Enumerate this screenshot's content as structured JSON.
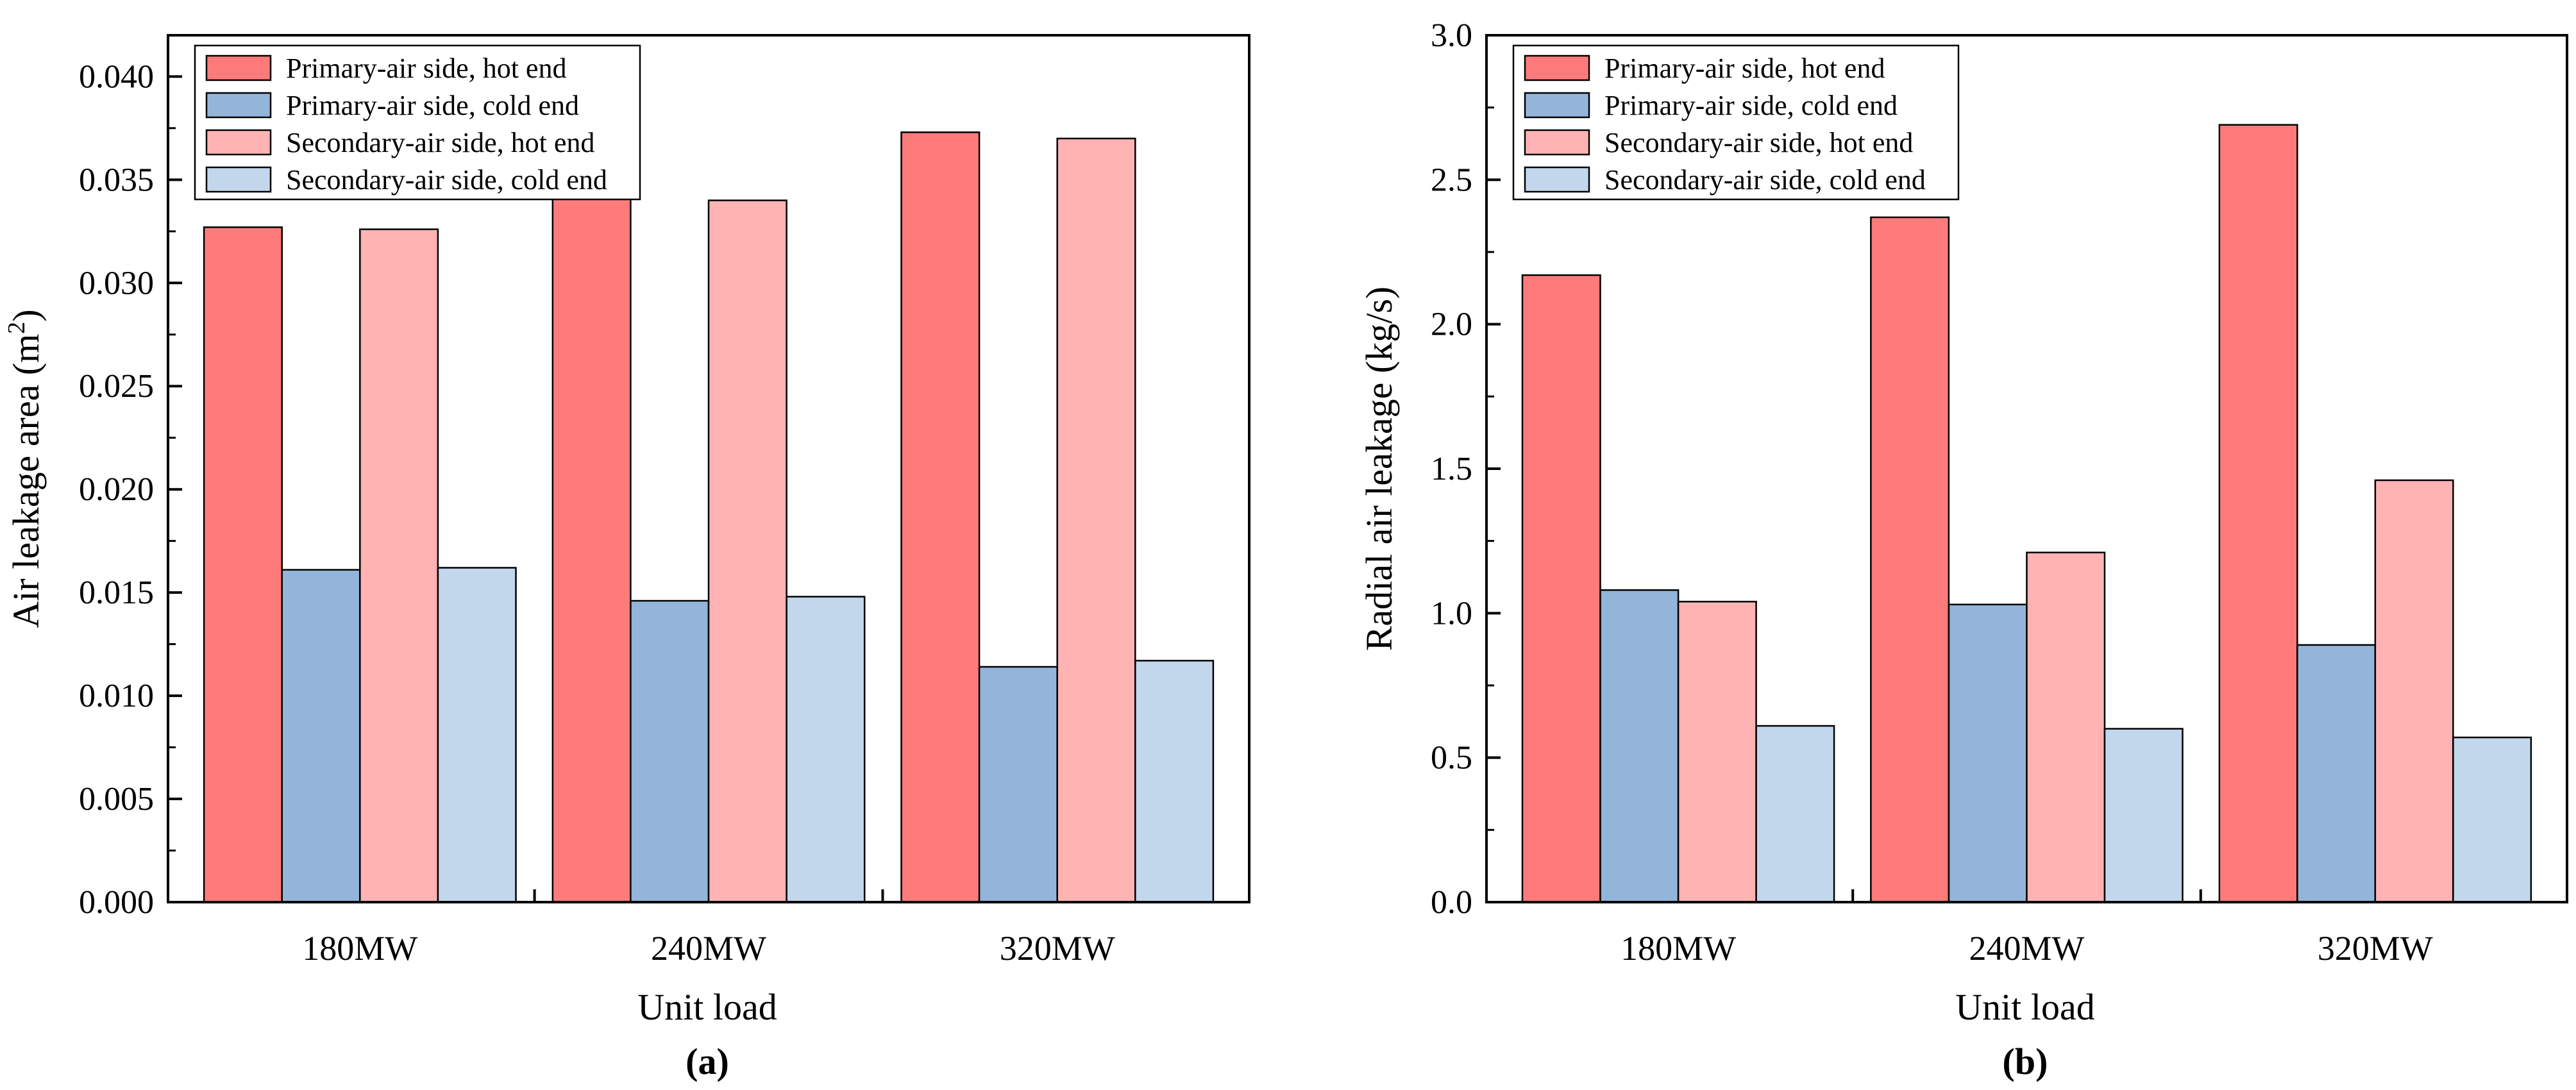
{
  "chart_data": [
    {
      "type": "bar",
      "panel_label": "(a)",
      "xlabel": "Unit load",
      "ylabel": "Air leakage area (m",
      "ylabel_sup": "2",
      "ylabel_end": ")",
      "categories": [
        "180MW",
        "240MW",
        "320MW"
      ],
      "ylim": [
        0,
        0.042
      ],
      "yticks": [
        "0.000",
        "0.005",
        "0.010",
        "0.015",
        "0.020",
        "0.025",
        "0.030",
        "0.035",
        "0.040"
      ],
      "ytick_step": 0.005,
      "legend_position": "top-left",
      "series": [
        {
          "name": "Primary-air side, hot end",
          "color": "#ff7b7b",
          "values": [
            0.0327,
            0.0343,
            0.0373
          ]
        },
        {
          "name": "Primary-air side, cold end",
          "color": "#93b5da",
          "values": [
            0.0161,
            0.0146,
            0.0114
          ]
        },
        {
          "name": "Secondary-air side, hot end",
          "color": "#ffb3b3",
          "values": [
            0.0326,
            0.034,
            0.037
          ]
        },
        {
          "name": "Secondary-air side, cold end",
          "color": "#c2d6ec",
          "values": [
            0.0162,
            0.0148,
            0.0117
          ]
        }
      ]
    },
    {
      "type": "bar",
      "panel_label": "(b)",
      "xlabel": "Unit load",
      "ylabel": "Radial air leakage (kg/s)",
      "ylabel_sup": "",
      "ylabel_end": "",
      "categories": [
        "180MW",
        "240MW",
        "320MW"
      ],
      "ylim": [
        0,
        3.0
      ],
      "yticks": [
        "0.0",
        "0.5",
        "1.0",
        "1.5",
        "2.0",
        "2.5",
        "3.0"
      ],
      "ytick_step": 0.5,
      "legend_position": "top-left",
      "series": [
        {
          "name": "Primary-air side, hot end",
          "color": "#ff7b7b",
          "values": [
            2.17,
            2.37,
            2.69
          ]
        },
        {
          "name": "Primary-air side, cold end",
          "color": "#93b5da",
          "values": [
            1.08,
            1.03,
            0.89
          ]
        },
        {
          "name": "Secondary-air side, hot end",
          "color": "#ffb3b3",
          "values": [
            1.04,
            1.21,
            1.46
          ]
        },
        {
          "name": "Secondary-air side, cold end",
          "color": "#c2d6ec",
          "values": [
            0.61,
            0.6,
            0.57
          ]
        }
      ]
    }
  ]
}
